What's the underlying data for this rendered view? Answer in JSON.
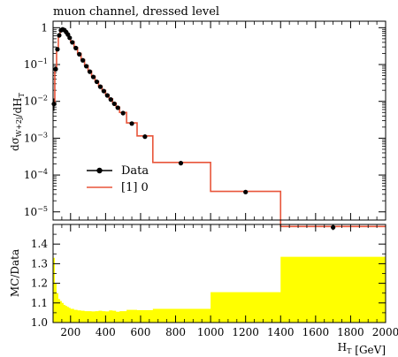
{
  "title": "muon channel, dressed level",
  "chart_data": [
    {
      "type": "line",
      "ylabel": "dσ_{W+2j}/dH_T",
      "yscale": "log",
      "ylim": [
        6e-06,
        1.5
      ],
      "xlim": [
        100,
        2000
      ],
      "legend": "middle-left",
      "legend_entries": [
        "Data",
        "[1] 0"
      ],
      "y_ticklabels": [
        {
          "base": "1",
          "exp": ""
        },
        {
          "base": "10",
          "exp": "−1"
        },
        {
          "base": "10",
          "exp": "−2"
        },
        {
          "base": "10",
          "exp": "−3"
        },
        {
          "base": "10",
          "exp": "−4"
        },
        {
          "base": "10",
          "exp": "−5"
        }
      ],
      "y_tickvalues": [
        1,
        0.1,
        0.01,
        0.001,
        0.0001,
        1e-05
      ],
      "series": [
        {
          "name": "Data",
          "kind": "points",
          "color": "#000000",
          "points": [
            {
              "x": 105,
              "y": 0.0085,
              "yerr_lo": 0.0055,
              "yerr_hi": 0.012
            },
            {
              "x": 115,
              "y": 0.075,
              "yerr_lo": 0.065,
              "yerr_hi": 0.087
            },
            {
              "x": 125,
              "y": 0.26,
              "yerr_lo": 0.23,
              "yerr_hi": 0.29
            },
            {
              "x": 135,
              "y": 0.62,
              "yerr_lo": 0.58,
              "yerr_hi": 0.66
            },
            {
              "x": 145,
              "y": 0.85,
              "yerr_lo": 0.82,
              "yerr_hi": 0.88
            },
            {
              "x": 155,
              "y": 0.9,
              "yerr_lo": 0.87,
              "yerr_hi": 0.93
            },
            {
              "x": 165,
              "y": 0.86,
              "yerr_lo": 0.83,
              "yerr_hi": 0.89
            },
            {
              "x": 175,
              "y": 0.76,
              "yerr_lo": 0.73,
              "yerr_hi": 0.79
            },
            {
              "x": 185,
              "y": 0.65,
              "yerr_lo": 0.62,
              "yerr_hi": 0.68
            },
            {
              "x": 195,
              "y": 0.53,
              "yerr_lo": 0.51,
              "yerr_hi": 0.55
            },
            {
              "x": 210,
              "y": 0.4,
              "yerr_lo": 0.38,
              "yerr_hi": 0.42
            },
            {
              "x": 230,
              "y": 0.28,
              "yerr_lo": 0.27,
              "yerr_hi": 0.29
            },
            {
              "x": 250,
              "y": 0.19,
              "yerr_lo": 0.18,
              "yerr_hi": 0.2
            },
            {
              "x": 270,
              "y": 0.13,
              "yerr_lo": 0.125,
              "yerr_hi": 0.135
            },
            {
              "x": 290,
              "y": 0.09,
              "yerr_lo": 0.086,
              "yerr_hi": 0.094
            },
            {
              "x": 310,
              "y": 0.064,
              "yerr_lo": 0.061,
              "yerr_hi": 0.067
            },
            {
              "x": 330,
              "y": 0.046,
              "yerr_lo": 0.044,
              "yerr_hi": 0.048
            },
            {
              "x": 350,
              "y": 0.034,
              "yerr_lo": 0.032,
              "yerr_hi": 0.036
            },
            {
              "x": 370,
              "y": 0.025,
              "yerr_lo": 0.0235,
              "yerr_hi": 0.0265
            },
            {
              "x": 390,
              "y": 0.019,
              "yerr_lo": 0.0178,
              "yerr_hi": 0.0202
            },
            {
              "x": 410,
              "y": 0.0145,
              "yerr_lo": 0.0135,
              "yerr_hi": 0.0155
            },
            {
              "x": 430,
              "y": 0.0112,
              "yerr_lo": 0.0104,
              "yerr_hi": 0.012
            },
            {
              "x": 450,
              "y": 0.0086,
              "yerr_lo": 0.008,
              "yerr_hi": 0.0092
            },
            {
              "x": 470,
              "y": 0.0067,
              "yerr_lo": 0.0062,
              "yerr_hi": 0.0072
            },
            {
              "x": 500,
              "y": 0.0048,
              "yerr_lo": 0.0044,
              "yerr_hi": 0.0052
            },
            {
              "x": 550,
              "y": 0.0025,
              "yerr_lo": 0.0023,
              "yerr_hi": 0.0027
            },
            {
              "x": 625,
              "y": 0.0011,
              "yerr_lo": 0.001,
              "yerr_hi": 0.0012
            },
            {
              "x": 830,
              "y": 0.00021,
              "yerr_lo": 0.00019,
              "yerr_hi": 0.00023
            },
            {
              "x": 1200,
              "y": 3.45e-05,
              "yerr_lo": 3.15e-05,
              "yerr_hi": 3.75e-05
            },
            {
              "x": 1700,
              "y": 3.8e-06,
              "yerr_lo": 3.2e-06,
              "yerr_hi": 4.4e-06
            }
          ]
        },
        {
          "name": "[1] 0",
          "kind": "step",
          "color": "#e8553a",
          "edges": [
            100,
            110,
            120,
            130,
            140,
            150,
            160,
            170,
            180,
            190,
            200,
            220,
            240,
            260,
            280,
            300,
            320,
            340,
            360,
            380,
            400,
            420,
            440,
            460,
            480,
            520,
            580,
            670,
            1000,
            1400,
            2000
          ],
          "values": [
            0.009,
            0.08,
            0.27,
            0.63,
            0.87,
            0.92,
            0.88,
            0.78,
            0.67,
            0.55,
            0.42,
            0.29,
            0.2,
            0.135,
            0.094,
            0.067,
            0.048,
            0.035,
            0.026,
            0.0198,
            0.0151,
            0.0117,
            0.009,
            0.007,
            0.005,
            0.0026,
            0.00115,
            0.00022,
            3.6e-05,
            4e-06
          ]
        }
      ]
    },
    {
      "type": "area",
      "ylabel": "MC/Data",
      "xlabel": "H_T [GeV]",
      "xlim": [
        100,
        2000
      ],
      "ylim": [
        1.0,
        1.5
      ],
      "x_ticklabels": [
        "200",
        "400",
        "600",
        "800",
        "1000",
        "1200",
        "1400",
        "1600",
        "1800",
        "2000"
      ],
      "y_ticklabels": [
        "1.0",
        "1.1",
        "1.2",
        "1.3",
        "1.4"
      ],
      "band_color": "#ffff00",
      "series": [
        {
          "name": "band",
          "edges": [
            100,
            110,
            120,
            130,
            140,
            150,
            160,
            170,
            180,
            190,
            200,
            220,
            240,
            260,
            280,
            300,
            320,
            340,
            360,
            380,
            400,
            420,
            440,
            460,
            480,
            520,
            580,
            670,
            1000,
            1400,
            2000
          ],
          "upper": [
            1.33,
            1.2,
            1.15,
            1.12,
            1.11,
            1.1,
            1.09,
            1.085,
            1.08,
            1.075,
            1.07,
            1.065,
            1.062,
            1.06,
            1.058,
            1.058,
            1.057,
            1.058,
            1.06,
            1.058,
            1.057,
            1.062,
            1.06,
            1.055,
            1.058,
            1.065,
            1.063,
            1.07,
            1.155,
            1.335
          ],
          "lower": [
            1.0,
            1.0,
            1.0,
            1.0,
            1.0,
            1.0,
            1.0,
            1.0,
            1.0,
            1.0,
            1.0,
            1.0,
            1.0,
            1.0,
            1.0,
            1.0,
            1.0,
            1.0,
            1.0,
            1.0,
            1.0,
            1.0,
            1.0,
            1.0,
            1.0,
            1.0,
            1.0,
            1.0,
            1.0,
            1.0
          ]
        }
      ]
    }
  ]
}
